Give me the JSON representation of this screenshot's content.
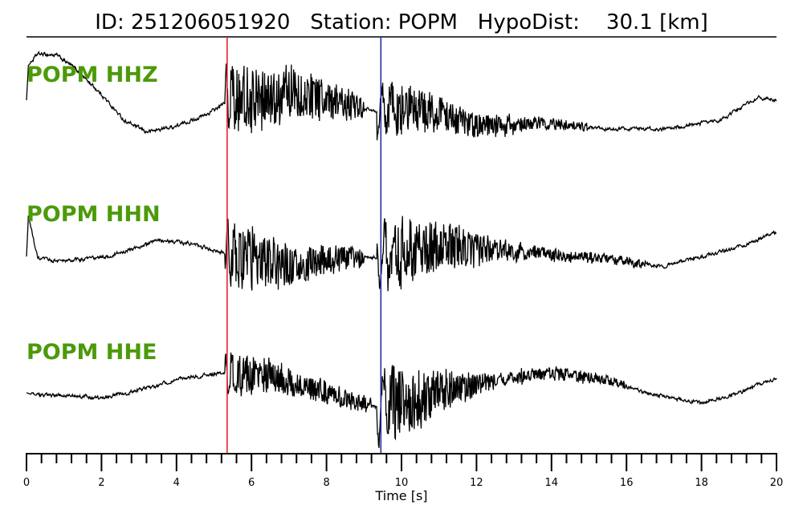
{
  "header": {
    "title": "ID: 251206051920   Station: POPM   HypoDist:    30.1 [km]"
  },
  "colors": {
    "label": "#4c9a0a",
    "p_pick": "#e8242a",
    "s_pick": "#1f2fa3",
    "trace": "#000000"
  },
  "chart_data": {
    "type": "line",
    "title": "ID: 251206051920   Station: POPM   HypoDist:    30.1 [km]",
    "xlabel": "Time [s]",
    "xlim": [
      0,
      20
    ],
    "major_ticks": [
      0,
      2,
      4,
      6,
      8,
      10,
      12,
      14,
      16,
      18,
      20
    ],
    "major_tick_labels": [
      "0",
      "2",
      "4",
      "6",
      "8",
      "10",
      "12",
      "14",
      "16",
      "18",
      "20"
    ],
    "minor_tick_step": 0.4,
    "grid": false,
    "markers": [
      {
        "phase": "P",
        "time": 5.35,
        "color": "#e8242a"
      },
      {
        "phase": "S",
        "time": 9.45,
        "color": "#1f2fa3"
      }
    ],
    "traces": [
      {
        "label": "POPM HHZ",
        "keypoints": [
          [
            0,
            0.0
          ],
          [
            0.05,
            0.6
          ],
          [
            0.3,
            0.8
          ],
          [
            0.8,
            0.78
          ],
          [
            1.3,
            0.55
          ],
          [
            2.0,
            0.1
          ],
          [
            2.6,
            -0.35
          ],
          [
            3.2,
            -0.55
          ],
          [
            4.0,
            -0.45
          ],
          [
            4.8,
            -0.25
          ],
          [
            5.3,
            -0.05
          ],
          [
            7,
            0.15
          ],
          [
            9.4,
            -0.2
          ],
          [
            10.5,
            -0.15
          ],
          [
            12,
            -0.45
          ],
          [
            14,
            -0.4
          ],
          [
            15.5,
            -0.5
          ],
          [
            17,
            -0.5
          ],
          [
            18.5,
            -0.35
          ],
          [
            19.5,
            0.05
          ],
          [
            20,
            0.0
          ]
        ],
        "bursts": [
          {
            "start": 5.3,
            "end": 9.0,
            "amp0": 0.75,
            "amp1": 0.22,
            "period": 0.16
          },
          {
            "start": 9.35,
            "end": 13.0,
            "amp0": 0.55,
            "amp1": 0.12,
            "period": 0.24
          },
          {
            "start": 12.5,
            "end": 15.0,
            "amp0": 0.14,
            "amp1": 0.07,
            "period": 0.26
          }
        ],
        "noise": 0.025
      },
      {
        "label": "POPM HHN",
        "keypoints": [
          [
            0,
            0.0
          ],
          [
            0.05,
            0.85
          ],
          [
            0.3,
            -0.05
          ],
          [
            1,
            -0.1
          ],
          [
            2.2,
            0.0
          ],
          [
            3.6,
            0.35
          ],
          [
            4.5,
            0.25
          ],
          [
            5.3,
            0.05
          ],
          [
            7,
            -0.15
          ],
          [
            9.4,
            0.0
          ],
          [
            11,
            0.2
          ],
          [
            13,
            0.1
          ],
          [
            15.5,
            -0.05
          ],
          [
            17,
            -0.2
          ],
          [
            19,
            0.2
          ],
          [
            20,
            0.5
          ]
        ],
        "bursts": [
          {
            "start": 5.3,
            "end": 9.0,
            "amp0": 0.8,
            "amp1": 0.2,
            "period": 0.17
          },
          {
            "start": 9.35,
            "end": 13.2,
            "amp0": 0.9,
            "amp1": 0.14,
            "period": 0.24
          },
          {
            "start": 13.0,
            "end": 16.5,
            "amp0": 0.15,
            "amp1": 0.08,
            "period": 0.28
          }
        ],
        "noise": 0.03
      },
      {
        "label": "POPM HHE",
        "keypoints": [
          [
            0,
            0.0
          ],
          [
            0.2,
            -0.05
          ],
          [
            1,
            -0.05
          ],
          [
            2,
            -0.1
          ],
          [
            3,
            0.05
          ],
          [
            4.2,
            0.3
          ],
          [
            5.3,
            0.4
          ],
          [
            6.5,
            0.35
          ],
          [
            8,
            0.0
          ],
          [
            9.4,
            -0.3
          ],
          [
            11,
            0.0
          ],
          [
            13,
            0.3
          ],
          [
            14,
            0.4
          ],
          [
            15.5,
            0.25
          ],
          [
            16.5,
            0.0
          ],
          [
            18,
            -0.2
          ],
          [
            19,
            0.0
          ],
          [
            20,
            0.3
          ]
        ],
        "bursts": [
          {
            "start": 5.3,
            "end": 9.2,
            "amp0": 0.45,
            "amp1": 0.15,
            "period": 0.17
          },
          {
            "start": 9.35,
            "end": 12.5,
            "amp0": 0.9,
            "amp1": 0.15,
            "period": 0.25
          },
          {
            "start": 12.5,
            "end": 16.0,
            "amp0": 0.18,
            "amp1": 0.08,
            "period": 0.28
          }
        ],
        "noise": 0.028
      }
    ]
  }
}
